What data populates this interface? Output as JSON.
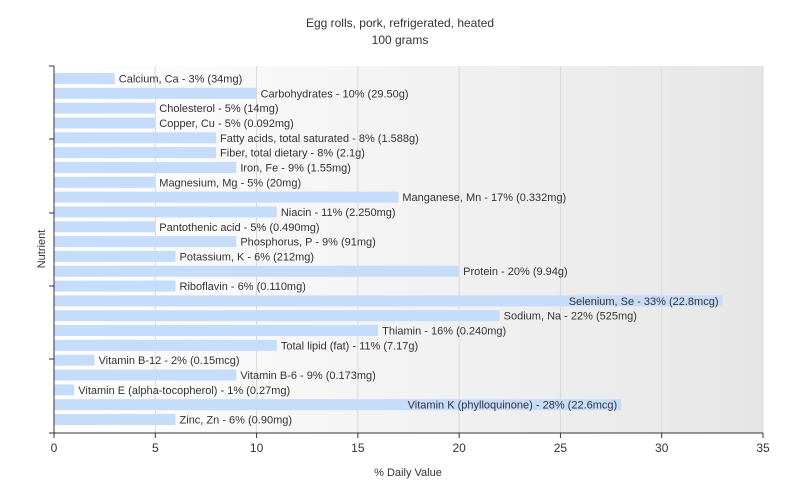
{
  "chart_data": {
    "type": "bar",
    "orientation": "horizontal",
    "title": "Egg rolls, pork, refrigerated, heated",
    "subtitle": "100 grams",
    "xlabel": "% Daily Value",
    "ylabel": "Nutrient",
    "xlim": [
      0,
      35
    ],
    "xticks": [
      0,
      5,
      10,
      15,
      20,
      25,
      30,
      35
    ],
    "grid": true,
    "bar_color": "#c6dcfb",
    "background_gradient": [
      "#ffffff",
      "#e6e6e6"
    ],
    "categories": [
      "Calcium, Ca",
      "Carbohydrates",
      "Cholesterol",
      "Copper, Cu",
      "Fatty acids, total saturated",
      "Fiber, total dietary",
      "Iron, Fe",
      "Magnesium, Mg",
      "Manganese, Mn",
      "Niacin",
      "Pantothenic acid",
      "Phosphorus, P",
      "Potassium, K",
      "Protein",
      "Riboflavin",
      "Selenium, Se",
      "Sodium, Na",
      "Thiamin",
      "Total lipid (fat)",
      "Vitamin B-12",
      "Vitamin B-6",
      "Vitamin E (alpha-tocopherol)",
      "Vitamin K (phylloquinone)",
      "Zinc, Zn"
    ],
    "values": [
      3,
      10,
      5,
      5,
      8,
      8,
      9,
      5,
      17,
      11,
      5,
      9,
      6,
      20,
      6,
      33,
      22,
      16,
      11,
      2,
      9,
      1,
      28,
      6
    ],
    "labels": [
      "Calcium, Ca - 3% (34mg)",
      "Carbohydrates - 10% (29.50g)",
      "Cholesterol - 5% (14mg)",
      "Copper, Cu - 5% (0.092mg)",
      "Fatty acids, total saturated - 8% (1.588g)",
      "Fiber, total dietary - 8% (2.1g)",
      "Iron, Fe - 9% (1.55mg)",
      "Magnesium, Mg - 5% (20mg)",
      "Manganese, Mn - 17% (0.332mg)",
      "Niacin - 11% (2.250mg)",
      "Pantothenic acid - 5% (0.490mg)",
      "Phosphorus, P - 9% (91mg)",
      "Potassium, K - 6% (212mg)",
      "Protein - 20% (9.94g)",
      "Riboflavin - 6% (0.110mg)",
      "Selenium, Se - 33% (22.8mcg)",
      "Sodium, Na - 22% (525mg)",
      "Thiamin - 16% (0.240mg)",
      "Total lipid (fat) - 11% (7.17g)",
      "Vitamin B-12 - 2% (0.15mcg)",
      "Vitamin B-6 - 9% (0.173mg)",
      "Vitamin E (alpha-tocopherol) - 1% (0.27mg)",
      "Vitamin K (phylloquinone) - 28% (22.6mcg)",
      "Zinc, Zn - 6% (0.90mg)"
    ]
  }
}
